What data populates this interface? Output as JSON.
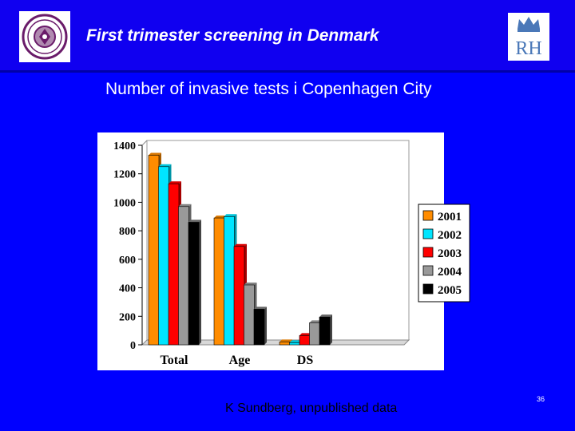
{
  "slide": {
    "title": "First trimester screening in Denmark",
    "subtitle": "Number of invasive tests i Copenhagen City",
    "credit": "K Sundberg, unpublished data",
    "page_number": "36",
    "left_logo": "university-seal",
    "right_logo": "RH",
    "colors": {
      "background": "#0000ff",
      "text": "#ffffff"
    }
  },
  "chart_data": {
    "type": "bar",
    "title": "",
    "xlabel": "",
    "ylabel": "",
    "categories": [
      "Total",
      "Age",
      "DS"
    ],
    "ylim": [
      0,
      1400
    ],
    "yticks": [
      0,
      200,
      400,
      600,
      800,
      1000,
      1200,
      1400
    ],
    "grid": false,
    "legend_position": "right",
    "series": [
      {
        "name": "2001",
        "color": "#ff8c00",
        "values": [
          1330,
          890,
          20
        ]
      },
      {
        "name": "2002",
        "color": "#00e5ff",
        "values": [
          1250,
          900,
          15
        ]
      },
      {
        "name": "2003",
        "color": "#ff0000",
        "values": [
          1130,
          690,
          65
        ]
      },
      {
        "name": "2004",
        "color": "#999999",
        "values": [
          970,
          420,
          155
        ]
      },
      {
        "name": "2005",
        "color": "#000000",
        "values": [
          860,
          250,
          195
        ]
      }
    ]
  }
}
